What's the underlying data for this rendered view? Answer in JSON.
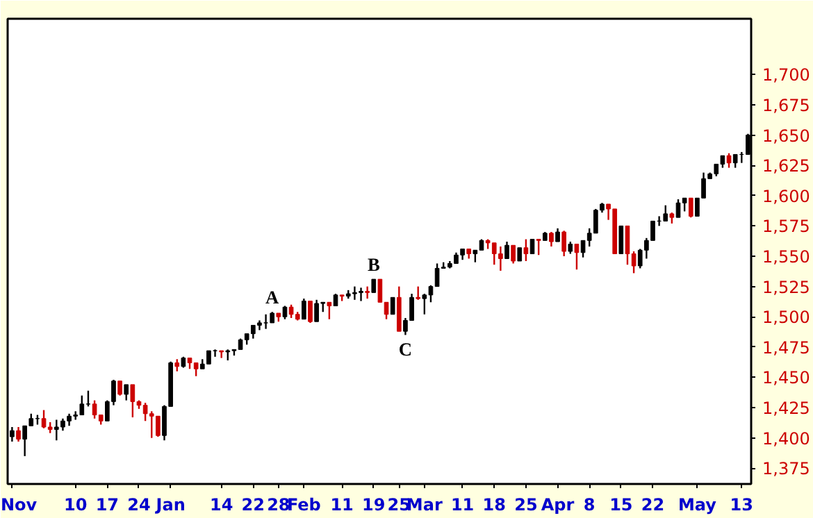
{
  "chart_data": {
    "type": "candlestick",
    "categories": [
      "Nov",
      null,
      null,
      null,
      null,
      null,
      null,
      null,
      null,
      null,
      "10",
      null,
      null,
      null,
      null,
      "17",
      null,
      null,
      null,
      null,
      "24",
      null,
      null,
      null,
      null,
      "Jan",
      null,
      null,
      null,
      null,
      null,
      null,
      null,
      "14",
      null,
      null,
      null,
      null,
      "22",
      null,
      null,
      null,
      "28",
      null,
      null,
      null,
      "Feb",
      null,
      null,
      null,
      null,
      null,
      "11",
      null,
      null,
      null,
      null,
      "19",
      null,
      null,
      null,
      "25",
      null,
      null,
      null,
      "Mar",
      null,
      null,
      null,
      null,
      null,
      "11",
      null,
      null,
      null,
      null,
      "18",
      null,
      null,
      null,
      null,
      "25",
      null,
      null,
      null,
      null,
      "Apr",
      null,
      null,
      null,
      null,
      "8",
      null,
      null,
      null,
      null,
      "15",
      null,
      null,
      null,
      null,
      "22",
      null,
      null,
      null,
      null,
      null,
      null,
      "May",
      null,
      null,
      null,
      null,
      null,
      null,
      "13",
      null
    ],
    "ohlc": [
      [
        1401,
        1409,
        1397,
        1406
      ],
      [
        1406,
        1409,
        1397,
        1399
      ],
      [
        1399,
        1410,
        1385,
        1410
      ],
      [
        1410,
        1420,
        1410,
        1416
      ],
      [
        1416,
        1419,
        1411,
        1416
      ],
      [
        1416,
        1423,
        1408,
        1409
      ],
      [
        1409,
        1413,
        1404,
        1407
      ],
      [
        1407,
        1415,
        1398,
        1409
      ],
      [
        1409,
        1416,
        1406,
        1414
      ],
      [
        1414,
        1420,
        1410,
        1418
      ],
      [
        1418,
        1422,
        1415,
        1419
      ],
      [
        1419,
        1435,
        1419,
        1428
      ],
      [
        1428,
        1439,
        1426,
        1428
      ],
      [
        1428,
        1431,
        1416,
        1419
      ],
      [
        1419,
        1419,
        1411,
        1414
      ],
      [
        1414,
        1431,
        1414,
        1430
      ],
      [
        1430,
        1448,
        1427,
        1447
      ],
      [
        1447,
        1447,
        1435,
        1436
      ],
      [
        1436,
        1444,
        1431,
        1444
      ],
      [
        1444,
        1444,
        1417,
        1430
      ],
      [
        1430,
        1431,
        1424,
        1427
      ],
      [
        1427,
        1429,
        1414,
        1420
      ],
      [
        1420,
        1422,
        1400,
        1418
      ],
      [
        1418,
        1418,
        1401,
        1402
      ],
      [
        1402,
        1427,
        1398,
        1426
      ],
      [
        1426,
        1463,
        1426,
        1462
      ],
      [
        1462,
        1465,
        1455,
        1459
      ],
      [
        1459,
        1467,
        1458,
        1466
      ],
      [
        1466,
        1466,
        1457,
        1462
      ],
      [
        1462,
        1462,
        1451,
        1457
      ],
      [
        1457,
        1465,
        1457,
        1461
      ],
      [
        1461,
        1472,
        1461,
        1472
      ],
      [
        1472,
        1473,
        1467,
        1472
      ],
      [
        1472,
        1472,
        1466,
        1471
      ],
      [
        1471,
        1473,
        1464,
        1472
      ],
      [
        1472,
        1473,
        1468,
        1473
      ],
      [
        1473,
        1482,
        1473,
        1481
      ],
      [
        1481,
        1486,
        1477,
        1486
      ],
      [
        1486,
        1493,
        1482,
        1493
      ],
      [
        1493,
        1497,
        1489,
        1495
      ],
      [
        1495,
        1502,
        1490,
        1495
      ],
      [
        1495,
        1504,
        1495,
        1503
      ],
      [
        1503,
        1503,
        1496,
        1500
      ],
      [
        1500,
        1509,
        1498,
        1508
      ],
      [
        1508,
        1510,
        1499,
        1502
      ],
      [
        1502,
        1504,
        1497,
        1498
      ],
      [
        1498,
        1515,
        1498,
        1513
      ],
      [
        1513,
        1513,
        1495,
        1496
      ],
      [
        1496,
        1514,
        1496,
        1511
      ],
      [
        1511,
        1512,
        1504,
        1512
      ],
      [
        1512,
        1512,
        1498,
        1509
      ],
      [
        1509,
        1519,
        1509,
        1518
      ],
      [
        1518,
        1518,
        1513,
        1517
      ],
      [
        1517,
        1522,
        1515,
        1519
      ],
      [
        1519,
        1525,
        1514,
        1520
      ],
      [
        1520,
        1524,
        1513,
        1521
      ],
      [
        1521,
        1525,
        1515,
        1520
      ],
      [
        1520,
        1531,
        1520,
        1531
      ],
      [
        1531,
        1531,
        1512,
        1512
      ],
      [
        1512,
        1512,
        1498,
        1502
      ],
      [
        1502,
        1516,
        1502,
        1516
      ],
      [
        1516,
        1525,
        1488,
        1488
      ],
      [
        1488,
        1499,
        1485,
        1497
      ],
      [
        1497,
        1519,
        1497,
        1516
      ],
      [
        1516,
        1525,
        1514,
        1515
      ],
      [
        1515,
        1519,
        1502,
        1518
      ],
      [
        1518,
        1526,
        1512,
        1525
      ],
      [
        1525,
        1544,
        1525,
        1540
      ],
      [
        1540,
        1545,
        1540,
        1541
      ],
      [
        1541,
        1546,
        1540,
        1544
      ],
      [
        1544,
        1553,
        1544,
        1551
      ],
      [
        1551,
        1556,
        1547,
        1556
      ],
      [
        1556,
        1556,
        1548,
        1552
      ],
      [
        1552,
        1555,
        1545,
        1555
      ],
      [
        1555,
        1564,
        1555,
        1563
      ],
      [
        1563,
        1564,
        1556,
        1561
      ],
      [
        1561,
        1561,
        1543,
        1552
      ],
      [
        1552,
        1558,
        1538,
        1548
      ],
      [
        1548,
        1562,
        1548,
        1559
      ],
      [
        1559,
        1559,
        1544,
        1546
      ],
      [
        1546,
        1557,
        1546,
        1557
      ],
      [
        1557,
        1564,
        1546,
        1552
      ],
      [
        1552,
        1564,
        1552,
        1564
      ],
      [
        1564,
        1564,
        1551,
        1563
      ],
      [
        1563,
        1570,
        1563,
        1569
      ],
      [
        1569,
        1570,
        1558,
        1562
      ],
      [
        1562,
        1573,
        1562,
        1570
      ],
      [
        1570,
        1571,
        1550,
        1554
      ],
      [
        1554,
        1562,
        1552,
        1560
      ],
      [
        1560,
        1560,
        1539,
        1553
      ],
      [
        1553,
        1563,
        1549,
        1563
      ],
      [
        1563,
        1573,
        1558,
        1569
      ],
      [
        1569,
        1589,
        1569,
        1588
      ],
      [
        1588,
        1594,
        1586,
        1593
      ],
      [
        1593,
        1593,
        1580,
        1589
      ],
      [
        1589,
        1589,
        1552,
        1552
      ],
      [
        1552,
        1575,
        1552,
        1575
      ],
      [
        1575,
        1575,
        1543,
        1552
      ],
      [
        1552,
        1554,
        1536,
        1542
      ],
      [
        1542,
        1556,
        1540,
        1555
      ],
      [
        1555,
        1565,
        1548,
        1563
      ],
      [
        1563,
        1579,
        1563,
        1579
      ],
      [
        1579,
        1583,
        1575,
        1579
      ],
      [
        1579,
        1592,
        1579,
        1585
      ],
      [
        1585,
        1586,
        1577,
        1582
      ],
      [
        1582,
        1597,
        1582,
        1594
      ],
      [
        1594,
        1598,
        1587,
        1598
      ],
      [
        1598,
        1598,
        1582,
        1583
      ],
      [
        1583,
        1598,
        1583,
        1598
      ],
      [
        1598,
        1619,
        1598,
        1614
      ],
      [
        1614,
        1619,
        1614,
        1618
      ],
      [
        1618,
        1626,
        1616,
        1626
      ],
      [
        1626,
        1633,
        1623,
        1633
      ],
      [
        1633,
        1635,
        1623,
        1627
      ],
      [
        1627,
        1634,
        1623,
        1634
      ],
      [
        1634,
        1636,
        1627,
        1634
      ],
      [
        1634,
        1651,
        1634,
        1650
      ]
    ],
    "colors": [
      "#000000",
      "#cc0000",
      "#000000",
      "#000000",
      "#000000",
      "#cc0000",
      "#cc0000",
      "#000000",
      "#000000",
      "#000000",
      "#000000",
      "#000000",
      "#000000",
      "#cc0000",
      "#cc0000",
      "#000000",
      "#000000",
      "#cc0000",
      "#000000",
      "#cc0000",
      "#cc0000",
      "#cc0000",
      "#cc0000",
      "#cc0000",
      "#000000",
      "#000000",
      "#cc0000",
      "#000000",
      "#cc0000",
      "#cc0000",
      "#000000",
      "#000000",
      "#000000",
      "#cc0000",
      "#000000",
      "#000000",
      "#000000",
      "#000000",
      "#000000",
      "#000000",
      "#000000",
      "#000000",
      "#cc0000",
      "#000000",
      "#cc0000",
      "#cc0000",
      "#000000",
      "#cc0000",
      "#000000",
      "#000000",
      "#cc0000",
      "#000000",
      "#cc0000",
      "#000000",
      "#000000",
      "#000000",
      "#cc0000",
      "#000000",
      "#cc0000",
      "#cc0000",
      "#000000",
      "#cc0000",
      "#000000",
      "#000000",
      "#cc0000",
      "#000000",
      "#000000",
      "#000000",
      "#000000",
      "#000000",
      "#000000",
      "#000000",
      "#cc0000",
      "#000000",
      "#000000",
      "#cc0000",
      "#cc0000",
      "#cc0000",
      "#000000",
      "#cc0000",
      "#000000",
      "#cc0000",
      "#000000",
      "#cc0000",
      "#000000",
      "#cc0000",
      "#000000",
      "#cc0000",
      "#000000",
      "#cc0000",
      "#000000",
      "#000000",
      "#000000",
      "#000000",
      "#cc0000",
      "#cc0000",
      "#000000",
      "#cc0000",
      "#cc0000",
      "#000000",
      "#000000",
      "#000000",
      "#000000",
      "#000000",
      "#cc0000",
      "#000000",
      "#000000",
      "#cc0000",
      "#000000",
      "#000000",
      "#000000",
      "#000000",
      "#000000",
      "#cc0000",
      "#000000",
      "#000000",
      "#000000"
    ],
    "ylim": [
      1362,
      1746
    ],
    "yticks": [
      {
        "value": 1375,
        "label": "1,375"
      },
      {
        "value": 1400,
        "label": "1,400"
      },
      {
        "value": 1425,
        "label": "1,425"
      },
      {
        "value": 1450,
        "label": "1,450"
      },
      {
        "value": 1475,
        "label": "1,475"
      },
      {
        "value": 1500,
        "label": "1,500"
      },
      {
        "value": 1525,
        "label": "1,525"
      },
      {
        "value": 1550,
        "label": "1,550"
      },
      {
        "value": 1575,
        "label": "1,575"
      },
      {
        "value": 1600,
        "label": "1,600"
      },
      {
        "value": 1625,
        "label": "1,625"
      },
      {
        "value": 1650,
        "label": "1,650"
      },
      {
        "value": 1675,
        "label": "1,675"
      },
      {
        "value": 1700,
        "label": "1,700"
      }
    ],
    "annotations": [
      "A",
      "B",
      "C"
    ]
  }
}
